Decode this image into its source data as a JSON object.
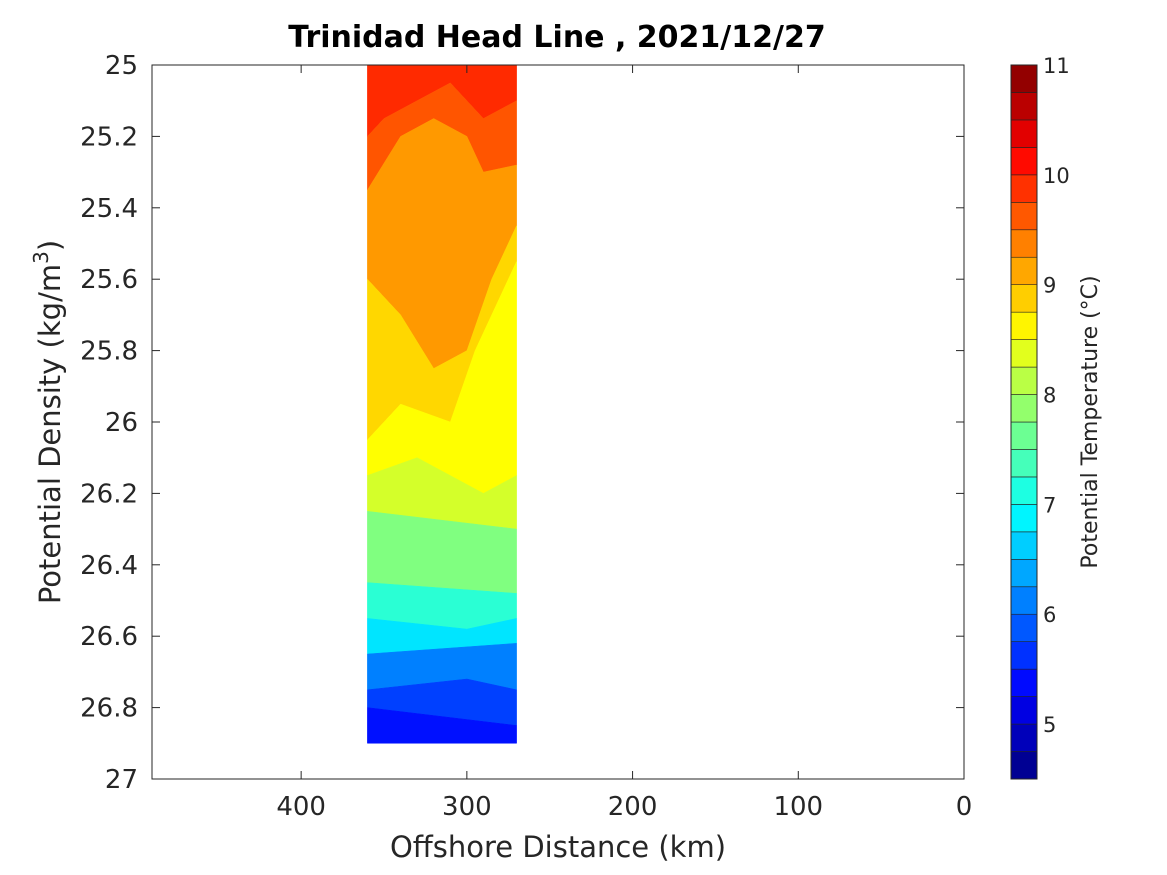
{
  "chart_data": {
    "type": "filled-contour",
    "title": "Trinidad Head Line , 2021/12/27",
    "xlabel": "Offshore Distance (km)",
    "ylabel_main": "Potential Density (kg/m",
    "ylabel_sup": "3",
    "ylabel_close": ")",
    "xlim": [
      490,
      0
    ],
    "x_reversed": true,
    "ylim": [
      25,
      27
    ],
    "y_reversed": true,
    "x_ticks": [
      400,
      300,
      200,
      100,
      0
    ],
    "y_ticks": [
      25,
      25.2,
      25.4,
      25.6,
      25.8,
      26,
      26.2,
      26.4,
      26.6,
      26.8,
      27
    ],
    "data_extent": {
      "x": [
        360,
        270
      ],
      "y": [
        25,
        26.9
      ]
    },
    "colorbar": {
      "label": "Potential Temperature (°C)",
      "range": [
        4.5,
        11
      ],
      "ticks": [
        5,
        6,
        7,
        8,
        9,
        10,
        11
      ],
      "step": 0.25,
      "colormap": "jet"
    },
    "contour_bands": [
      {
        "temp_min": 10.0,
        "color": "#ff2a00",
        "outline": [
          [
            360,
            25
          ],
          [
            270,
            25
          ],
          [
            270,
            25.1
          ],
          [
            290,
            25.15
          ],
          [
            310,
            25.05
          ],
          [
            330,
            25.1
          ],
          [
            350,
            25.15
          ],
          [
            360,
            25.2
          ]
        ]
      },
      {
        "temp_min": 9.75,
        "color": "#ff5500",
        "outline": [
          [
            360,
            25.2
          ],
          [
            350,
            25.15
          ],
          [
            330,
            25.1
          ],
          [
            310,
            25.05
          ],
          [
            290,
            25.15
          ],
          [
            270,
            25.1
          ],
          [
            270,
            25.28
          ],
          [
            290,
            25.3
          ],
          [
            300,
            25.2
          ],
          [
            320,
            25.15
          ],
          [
            340,
            25.2
          ],
          [
            360,
            25.35
          ]
        ]
      },
      {
        "temp_min": 9.25,
        "color": "#ff9900",
        "outline": [
          [
            360,
            25.35
          ],
          [
            340,
            25.2
          ],
          [
            320,
            25.15
          ],
          [
            300,
            25.2
          ],
          [
            290,
            25.3
          ],
          [
            270,
            25.28
          ],
          [
            270,
            25.45
          ],
          [
            285,
            25.6
          ],
          [
            300,
            25.8
          ],
          [
            320,
            25.85
          ],
          [
            340,
            25.7
          ],
          [
            360,
            25.6
          ]
        ]
      },
      {
        "temp_min": 8.75,
        "color": "#ffd700",
        "outline": [
          [
            360,
            25.6
          ],
          [
            340,
            25.7
          ],
          [
            320,
            25.85
          ],
          [
            300,
            25.8
          ],
          [
            285,
            25.6
          ],
          [
            270,
            25.45
          ],
          [
            270,
            25.55
          ],
          [
            295,
            25.8
          ],
          [
            310,
            26
          ],
          [
            340,
            25.95
          ],
          [
            360,
            26.05
          ]
        ]
      },
      {
        "temp_min": 8.5,
        "color": "#ffff00",
        "outline": [
          [
            360,
            26.05
          ],
          [
            340,
            25.95
          ],
          [
            310,
            26
          ],
          [
            295,
            25.8
          ],
          [
            270,
            25.55
          ],
          [
            270,
            26.15
          ],
          [
            290,
            26.2
          ],
          [
            330,
            26.1
          ],
          [
            360,
            26.15
          ]
        ]
      },
      {
        "temp_min": 8.25,
        "color": "#d4ff2a",
        "outline": [
          [
            360,
            26.15
          ],
          [
            330,
            26.1
          ],
          [
            290,
            26.2
          ],
          [
            270,
            26.15
          ],
          [
            270,
            26.3
          ],
          [
            360,
            26.25
          ]
        ]
      },
      {
        "temp_min": 7.75,
        "color": "#80ff80",
        "outline": [
          [
            360,
            26.25
          ],
          [
            270,
            26.3
          ],
          [
            270,
            26.48
          ],
          [
            360,
            26.45
          ]
        ]
      },
      {
        "temp_min": 7.25,
        "color": "#2affd4",
        "outline": [
          [
            360,
            26.45
          ],
          [
            270,
            26.48
          ],
          [
            270,
            26.55
          ],
          [
            300,
            26.58
          ],
          [
            360,
            26.55
          ]
        ]
      },
      {
        "temp_min": 6.75,
        "color": "#00e5ff",
        "outline": [
          [
            360,
            26.55
          ],
          [
            300,
            26.58
          ],
          [
            270,
            26.55
          ],
          [
            270,
            26.62
          ],
          [
            360,
            26.65
          ]
        ]
      },
      {
        "temp_min": 6.25,
        "color": "#0080ff",
        "outline": [
          [
            360,
            26.65
          ],
          [
            270,
            26.62
          ],
          [
            270,
            26.75
          ],
          [
            300,
            26.72
          ],
          [
            360,
            26.75
          ]
        ]
      },
      {
        "temp_min": 5.75,
        "color": "#0040ff",
        "outline": [
          [
            360,
            26.75
          ],
          [
            300,
            26.72
          ],
          [
            270,
            26.75
          ],
          [
            270,
            26.85
          ],
          [
            360,
            26.8
          ]
        ]
      },
      {
        "temp_min": 5.25,
        "color": "#0010ff",
        "outline": [
          [
            360,
            26.8
          ],
          [
            270,
            26.85
          ],
          [
            270,
            26.9
          ],
          [
            360,
            26.9
          ]
        ]
      }
    ]
  }
}
